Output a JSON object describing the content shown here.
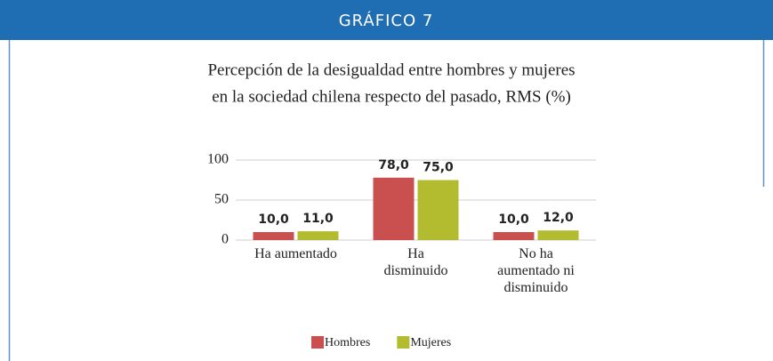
{
  "header": "GRÁFICO 7",
  "chart_data": {
    "type": "bar",
    "title": [
      "Percepción de la desigualdad entre hombres y mujeres",
      "en la sociedad chilena respecto del pasado, RMS (%)"
    ],
    "categories": [
      "Ha aumentado",
      "Ha disminuido",
      "No ha aumentado ni disminuido"
    ],
    "series": [
      {
        "name": "Hombres",
        "color": "#c9504f",
        "values": [
          10,
          78,
          10
        ],
        "value_labels": [
          "10,0",
          "78,0",
          "10,0"
        ]
      },
      {
        "name": "Mujeres",
        "color": "#b3bb2e",
        "values": [
          11,
          75,
          12
        ],
        "value_labels": [
          "11,0",
          "75,0",
          "12,0"
        ]
      }
    ],
    "ylim": [
      0,
      100
    ],
    "yticks": [
      0,
      50,
      100
    ],
    "grid": true,
    "legend": "bottom"
  }
}
